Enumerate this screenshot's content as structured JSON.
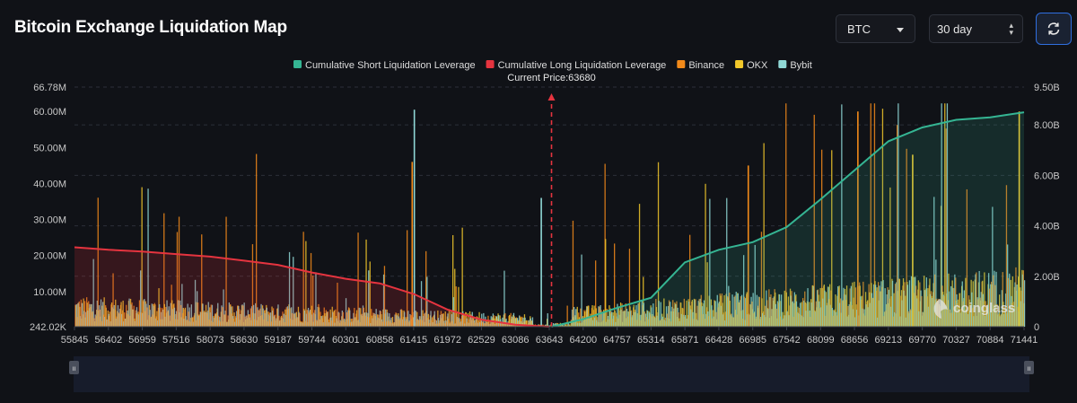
{
  "header": {
    "title": "Bitcoin Exchange Liquidation Map",
    "coin_select": "BTC",
    "range_select": "30 day"
  },
  "icons": {
    "refresh": "refresh-icon",
    "dropdown": "chevron-down-icon",
    "stepper": "updown-icon",
    "watermark": "coinglass-logo"
  },
  "watermark_text": "coinglass",
  "colors": {
    "background": "#101217",
    "short_cumulative": "#35b593",
    "long_cumulative": "#e5343f",
    "binance": "#f28a1a",
    "okx": "#f2c82a",
    "bybit": "#8fd8d6",
    "current_price_marker": "#e5343f",
    "accent_button": "#2f6fe0"
  },
  "chart_data": {
    "type": "bar",
    "legend": [
      "Cumulative Short Liquidation Leverage",
      "Cumulative Long Liquidation Leverage",
      "Binance",
      "OKX",
      "Bybit"
    ],
    "legend_position": "top-center",
    "current_price_label": "Current Price:63680",
    "current_price": 63680,
    "x_tick_labels": [
      "55845",
      "56402",
      "56959",
      "57516",
      "58073",
      "58630",
      "59187",
      "59744",
      "60301",
      "60858",
      "61415",
      "61972",
      "62529",
      "63086",
      "63643",
      "64200",
      "64757",
      "65314",
      "65871",
      "66428",
      "66985",
      "67542",
      "68099",
      "68656",
      "69213",
      "69770",
      "70327",
      "70884",
      "71441"
    ],
    "x_range": [
      55845,
      71441
    ],
    "y_left_tick_labels": [
      "66.78M",
      "60.00M",
      "50.00M",
      "40.00M",
      "30.00M",
      "20.00M",
      "10.00M",
      "242.02K"
    ],
    "y_left_ticks": [
      66780000,
      60000000,
      50000000,
      40000000,
      30000000,
      20000000,
      10000000,
      242020
    ],
    "y_left_range": [
      242020,
      66780000
    ],
    "y_right_tick_labels": [
      "9.50B",
      "8.00B",
      "6.00B",
      "4.00B",
      "2.00B",
      "0"
    ],
    "y_right_ticks": [
      9.5,
      8.0,
      6.0,
      4.0,
      2.0,
      0
    ],
    "y_right_range": [
      0,
      9.5
    ],
    "y_right_unit": "B",
    "grid": true,
    "cumulative_long": {
      "x": [
        55845,
        56402,
        56959,
        57516,
        58073,
        58630,
        59187,
        59744,
        60301,
        60858,
        61415,
        61972,
        62529,
        63086,
        63643
      ],
      "y": [
        3.15,
        3.05,
        2.98,
        2.88,
        2.78,
        2.62,
        2.45,
        2.15,
        1.9,
        1.72,
        1.3,
        0.68,
        0.28,
        0.08,
        0
      ]
    },
    "cumulative_short": {
      "x": [
        63680,
        64200,
        64757,
        65314,
        65871,
        66428,
        66985,
        67542,
        68099,
        68656,
        69213,
        69770,
        70327,
        70884,
        71441
      ],
      "y": [
        0,
        0.3,
        0.75,
        1.15,
        2.55,
        3.05,
        3.35,
        3.95,
        5.05,
        6.2,
        7.35,
        7.9,
        8.2,
        8.3,
        8.5
      ]
    },
    "bar_series": [
      {
        "name": "Binance",
        "peaks": [
          {
            "x": 61380,
            "value": 46000000
          },
          {
            "x": 66900,
            "value": 45000000
          },
          {
            "x": 68700,
            "value": 60000000
          }
        ]
      },
      {
        "name": "OKX",
        "peaks": [
          {
            "x": 71350,
            "value": 60000000
          },
          {
            "x": 69600,
            "value": 48000000
          }
        ]
      },
      {
        "name": "Bybit",
        "peaks": [
          {
            "x": 61415,
            "value": 60500000
          },
          {
            "x": 63500,
            "value": 36000000
          }
        ]
      }
    ]
  }
}
